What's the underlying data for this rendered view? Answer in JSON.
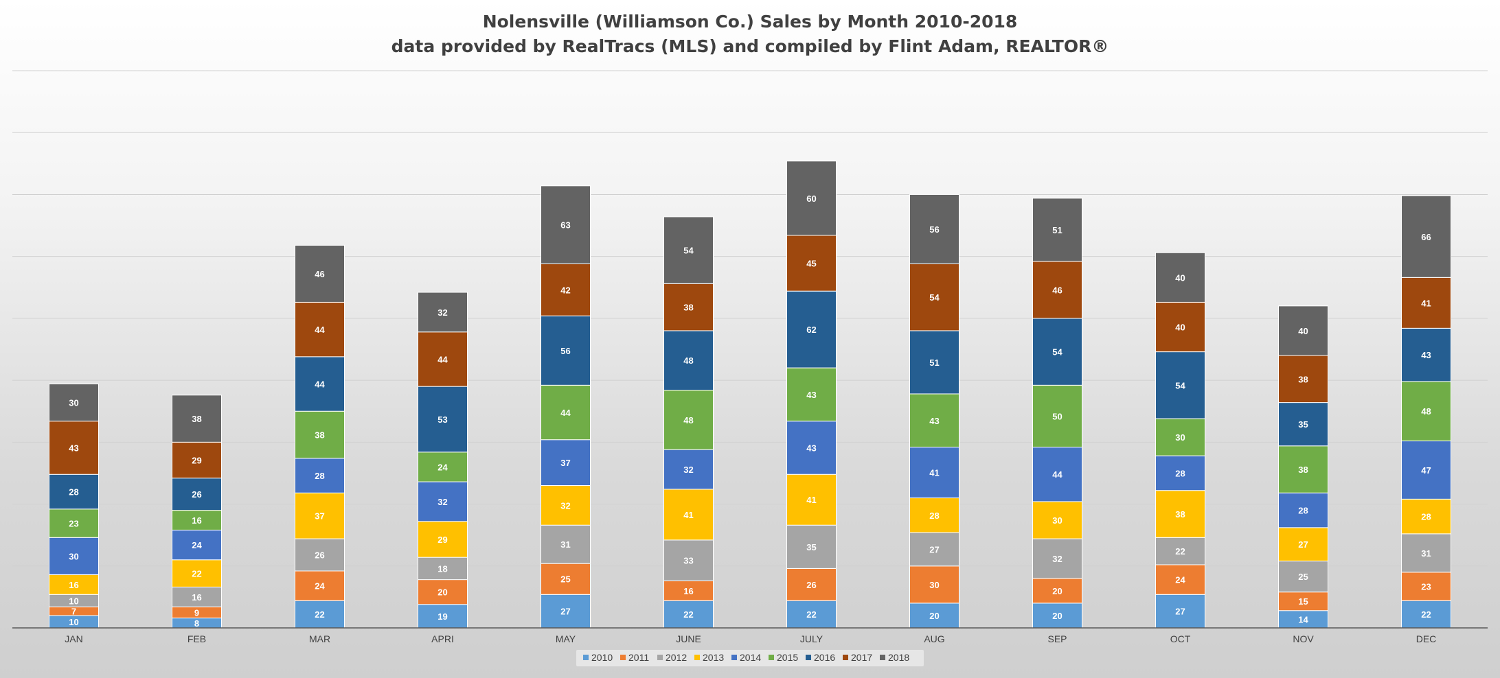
{
  "chart_data": {
    "type": "bar",
    "stacked": true,
    "title": "Nolensville (Williamson Co.) Sales by Month 2010-2018",
    "subtitle": "data provided by RealTracs (MLS) and compiled by Flint Adam, REALTOR®",
    "categories": [
      "JAN",
      "FEB",
      "MAR",
      "APRI",
      "MAY",
      "JUNE",
      "JULY",
      "AUG",
      "SEP",
      "OCT",
      "NOV",
      "DEC"
    ],
    "ylim": [
      0,
      450
    ],
    "grid": true,
    "legend": "bottom",
    "series": [
      {
        "name": "2010",
        "color": "#5B9BD5",
        "values": [
          10,
          8,
          22,
          19,
          27,
          22,
          22,
          20,
          20,
          27,
          14,
          22
        ]
      },
      {
        "name": "2011",
        "color": "#ED7D31",
        "values": [
          7,
          9,
          24,
          20,
          25,
          16,
          26,
          30,
          20,
          24,
          15,
          23
        ]
      },
      {
        "name": "2012",
        "color": "#A5A5A5",
        "values": [
          10,
          16,
          26,
          18,
          31,
          33,
          35,
          27,
          32,
          22,
          25,
          31
        ]
      },
      {
        "name": "2013",
        "color": "#FFC000",
        "values": [
          16,
          22,
          37,
          29,
          32,
          41,
          41,
          28,
          30,
          38,
          27,
          28
        ]
      },
      {
        "name": "2014",
        "color": "#4472C4",
        "values": [
          30,
          24,
          28,
          32,
          37,
          32,
          43,
          41,
          44,
          28,
          28,
          47
        ]
      },
      {
        "name": "2015",
        "color": "#70AD47",
        "values": [
          23,
          16,
          38,
          24,
          44,
          48,
          43,
          43,
          50,
          30,
          38,
          48
        ]
      },
      {
        "name": "2016",
        "color": "#255E91",
        "values": [
          28,
          26,
          44,
          53,
          56,
          48,
          62,
          51,
          54,
          54,
          35,
          43
        ]
      },
      {
        "name": "2017",
        "color": "#9E480E",
        "values": [
          43,
          29,
          44,
          44,
          42,
          38,
          45,
          54,
          46,
          40,
          38,
          41
        ]
      },
      {
        "name": "2018",
        "color": "#636363",
        "values": [
          30,
          38,
          46,
          32,
          63,
          54,
          60,
          56,
          51,
          40,
          40,
          66
        ]
      }
    ]
  }
}
